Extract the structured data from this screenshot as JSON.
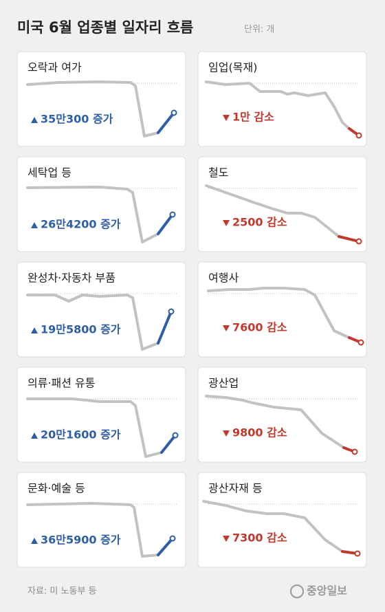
{
  "header": {
    "title": "미국 6월 업종별 일자리 흐름",
    "unit": "단위: 개"
  },
  "increases": [
    {
      "label": "오락과 여가",
      "change": "35만300 증가"
    },
    {
      "label": "세탁업 등",
      "change": "26만4200 증가"
    },
    {
      "label": "완성차·자동차 부품",
      "change": "19만5800 증가"
    },
    {
      "label": "의류·패션 유통",
      "change": "20만1600 증가"
    },
    {
      "label": "문화·예술 등",
      "change": "36만5900 증가"
    }
  ],
  "decreases": [
    {
      "label": "임업(목재)",
      "change": "1만 감소"
    },
    {
      "label": "철도",
      "change": "2500 감소"
    },
    {
      "label": "여행사",
      "change": "7600 감소"
    },
    {
      "label": "광산업",
      "change": "9800 감소"
    },
    {
      "label": "광산자재 등",
      "change": "7300 감소"
    }
  ],
  "footer": {
    "source": "자료: 미 노동부 등",
    "logo": "중앙일보"
  }
}
